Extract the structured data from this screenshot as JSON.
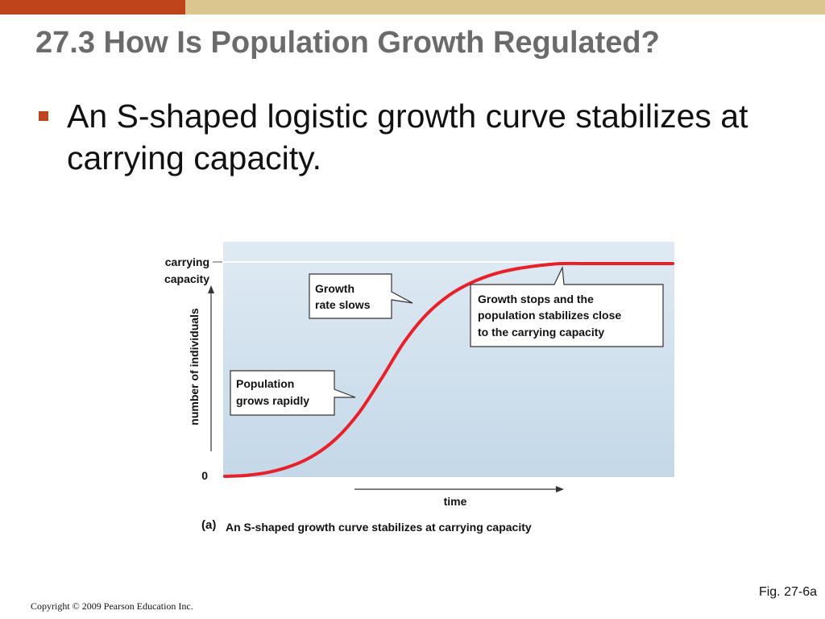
{
  "slide": {
    "title": "27.3 How Is Population Growth Regulated?",
    "bullet": "An S-shaped logistic growth curve stabilizes at carrying capacity.",
    "fig_label": "Fig. 27-6a",
    "copyright": "Copyright © 2009 Pearson Education Inc.",
    "colors": {
      "accent": "#c0441b",
      "topbar": "#dcc690",
      "curve": "#e8202a"
    }
  },
  "chart_data": {
    "type": "line",
    "ylabel": "number of individuals",
    "xlabel": "time",
    "y_zero_label": "0",
    "carrying_capacity_label": [
      "carrying",
      "capacity"
    ],
    "caption_tag": "(a)",
    "caption": "An S-shaped growth curve stabilizes at carrying capacity",
    "series": [
      {
        "values_x": [
          0,
          5,
          10,
          15,
          20,
          25,
          30,
          35,
          40,
          45,
          50,
          55,
          60,
          65,
          70,
          75,
          80,
          85,
          90,
          95,
          100
        ],
        "values_y": [
          0.0,
          0.005,
          0.02,
          0.05,
          0.1,
          0.18,
          0.3,
          0.46,
          0.63,
          0.76,
          0.85,
          0.91,
          0.95,
          0.975,
          0.99,
          1.0,
          1.0,
          1.0,
          1.0,
          1.0,
          1.0
        ]
      }
    ],
    "carrying_capacity": 1.0,
    "xlim": [
      0,
      100
    ],
    "ylim": [
      0,
      1.1
    ],
    "annotations": {
      "slows": [
        "Growth",
        "rate slows"
      ],
      "rapid": [
        "Population",
        "grows rapidly"
      ],
      "stops": [
        "Growth stops and the",
        "population stabilizes close",
        "to the carrying capacity"
      ]
    }
  }
}
